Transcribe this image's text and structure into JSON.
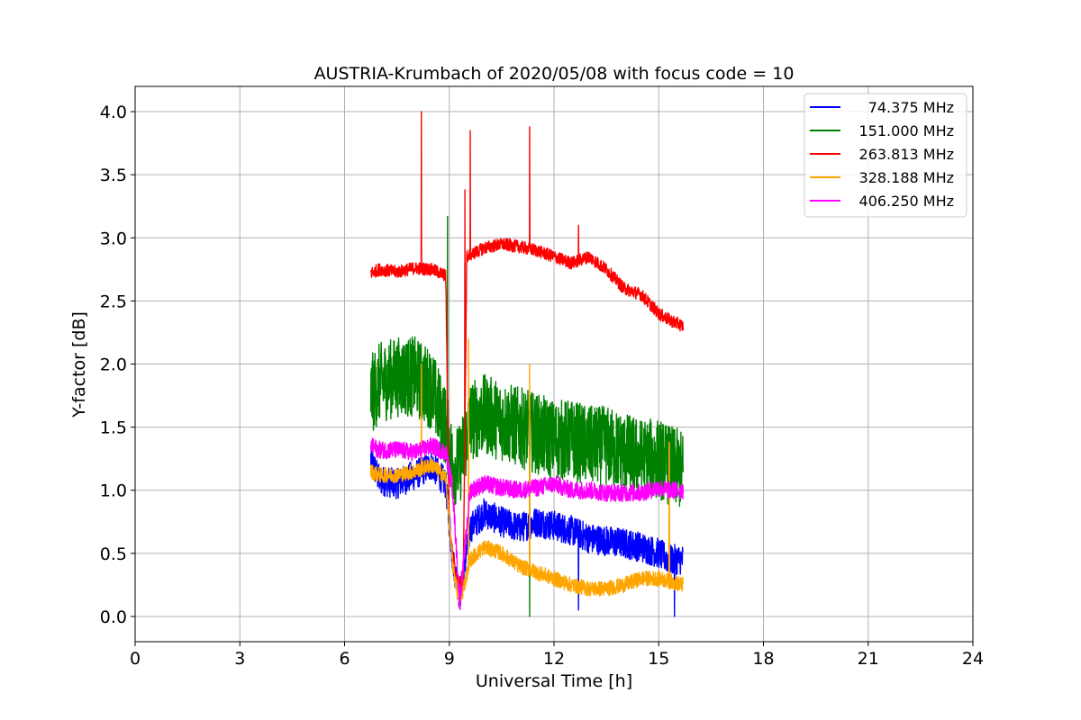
{
  "chart_data": {
    "type": "line",
    "title": "AUSTRIA-Krumbach of 2020/05/08 with focus code = 10",
    "xlabel": "Universal Time [h]",
    "ylabel": "Y-factor [dB]",
    "xlim": [
      0,
      24
    ],
    "ylim": [
      -0.2,
      4.2
    ],
    "xticks": [
      0,
      3,
      6,
      9,
      12,
      15,
      18,
      21,
      24
    ],
    "xtick_labels": [
      "0",
      "3",
      "6",
      "9",
      "12",
      "15",
      "18",
      "21",
      "24"
    ],
    "yticks": [
      0.0,
      0.5,
      1.0,
      1.5,
      2.0,
      2.5,
      3.0,
      3.5,
      4.0
    ],
    "ytick_labels": [
      "0.0",
      "0.5",
      "1.0",
      "1.5",
      "2.0",
      "2.5",
      "3.0",
      "3.5",
      "4.0"
    ],
    "grid": true,
    "legend_position": "top-right",
    "series": [
      {
        "name": "74.375 MHz",
        "color": "#0000ff",
        "noise": 0.12,
        "points": [
          [
            6.75,
            1.25
          ],
          [
            7.0,
            1.08
          ],
          [
            7.5,
            1.05
          ],
          [
            8.0,
            1.12
          ],
          [
            8.5,
            1.2
          ],
          [
            8.9,
            1.05
          ],
          [
            9.1,
            0.45
          ],
          [
            9.3,
            0.15
          ],
          [
            9.6,
            0.7
          ],
          [
            10.0,
            0.82
          ],
          [
            10.5,
            0.75
          ],
          [
            11.0,
            0.7
          ],
          [
            11.5,
            0.75
          ],
          [
            12.0,
            0.72
          ],
          [
            12.5,
            0.68
          ],
          [
            13.0,
            0.62
          ],
          [
            13.5,
            0.6
          ],
          [
            14.0,
            0.58
          ],
          [
            14.5,
            0.55
          ],
          [
            15.0,
            0.5
          ],
          [
            15.3,
            0.45
          ],
          [
            15.7,
            0.45
          ]
        ]
      },
      {
        "name": "151.000 MHz",
        "color": "#008000",
        "noise": 0.32,
        "points": [
          [
            6.75,
            1.75
          ],
          [
            7.0,
            1.85
          ],
          [
            7.5,
            1.9
          ],
          [
            8.0,
            1.9
          ],
          [
            8.5,
            1.8
          ],
          [
            8.9,
            1.5
          ],
          [
            9.1,
            1.2
          ],
          [
            9.3,
            1.2
          ],
          [
            9.6,
            1.55
          ],
          [
            10.0,
            1.6
          ],
          [
            10.5,
            1.55
          ],
          [
            11.0,
            1.5
          ],
          [
            11.5,
            1.45
          ],
          [
            12.0,
            1.4
          ],
          [
            12.5,
            1.4
          ],
          [
            13.0,
            1.35
          ],
          [
            13.5,
            1.35
          ],
          [
            14.0,
            1.3
          ],
          [
            14.5,
            1.25
          ],
          [
            15.0,
            1.25
          ],
          [
            15.3,
            1.2
          ],
          [
            15.7,
            1.15
          ]
        ]
      },
      {
        "name": "263.813 MHz",
        "color": "#ff0000",
        "noise": 0.05,
        "points": [
          [
            6.75,
            2.72
          ],
          [
            7.0,
            2.75
          ],
          [
            7.5,
            2.73
          ],
          [
            8.0,
            2.76
          ],
          [
            8.5,
            2.75
          ],
          [
            8.9,
            2.7
          ],
          [
            9.0,
            0.7
          ],
          [
            9.2,
            0.3
          ],
          [
            9.4,
            0.25
          ],
          [
            9.5,
            2.85
          ],
          [
            10.0,
            2.92
          ],
          [
            10.5,
            2.95
          ],
          [
            11.0,
            2.93
          ],
          [
            11.5,
            2.9
          ],
          [
            12.0,
            2.85
          ],
          [
            12.5,
            2.8
          ],
          [
            13.0,
            2.85
          ],
          [
            13.5,
            2.75
          ],
          [
            14.0,
            2.6
          ],
          [
            14.5,
            2.55
          ],
          [
            15.0,
            2.4
          ],
          [
            15.3,
            2.35
          ],
          [
            15.7,
            2.3
          ]
        ]
      },
      {
        "name": "328.188 MHz",
        "color": "#ffa500",
        "noise": 0.06,
        "points": [
          [
            6.75,
            1.15
          ],
          [
            7.0,
            1.12
          ],
          [
            7.5,
            1.12
          ],
          [
            8.0,
            1.15
          ],
          [
            8.5,
            1.2
          ],
          [
            8.9,
            1.1
          ],
          [
            9.1,
            0.4
          ],
          [
            9.3,
            0.1
          ],
          [
            9.6,
            0.45
          ],
          [
            10.0,
            0.55
          ],
          [
            10.5,
            0.5
          ],
          [
            11.0,
            0.4
          ],
          [
            11.5,
            0.35
          ],
          [
            12.0,
            0.3
          ],
          [
            12.5,
            0.25
          ],
          [
            13.0,
            0.22
          ],
          [
            13.5,
            0.22
          ],
          [
            14.0,
            0.25
          ],
          [
            14.5,
            0.3
          ],
          [
            15.0,
            0.3
          ],
          [
            15.3,
            0.28
          ],
          [
            15.7,
            0.25
          ]
        ]
      },
      {
        "name": "406.250 MHz",
        "color": "#ff00ff",
        "noise": 0.07,
        "points": [
          [
            6.75,
            1.35
          ],
          [
            7.0,
            1.32
          ],
          [
            7.5,
            1.32
          ],
          [
            8.0,
            1.3
          ],
          [
            8.5,
            1.35
          ],
          [
            8.9,
            1.3
          ],
          [
            9.1,
            1.0
          ],
          [
            9.3,
            0.1
          ],
          [
            9.6,
            1.0
          ],
          [
            10.0,
            1.05
          ],
          [
            10.5,
            1.02
          ],
          [
            11.0,
            1.0
          ],
          [
            11.5,
            1.02
          ],
          [
            12.0,
            1.05
          ],
          [
            12.5,
            1.0
          ],
          [
            13.0,
            1.0
          ],
          [
            13.5,
            0.98
          ],
          [
            14.0,
            0.98
          ],
          [
            14.5,
            0.98
          ],
          [
            15.0,
            1.02
          ],
          [
            15.3,
            1.0
          ],
          [
            15.7,
            1.0
          ]
        ]
      }
    ],
    "spikes": [
      {
        "series": 2,
        "x": 8.2,
        "y": 4.0
      },
      {
        "series": 2,
        "x": 9.45,
        "y": 3.38
      },
      {
        "series": 2,
        "x": 9.6,
        "y": 3.85
      },
      {
        "series": 2,
        "x": 11.3,
        "y": 3.88
      },
      {
        "series": 1,
        "x": 8.95,
        "y": 3.17
      },
      {
        "series": 1,
        "x": 9.45,
        "y": 2.8
      },
      {
        "series": 3,
        "x": 8.2,
        "y": 2.0
      },
      {
        "series": 3,
        "x": 9.55,
        "y": 2.2
      },
      {
        "series": 3,
        "x": 11.3,
        "y": 2.0
      },
      {
        "series": 3,
        "x": 15.3,
        "y": 1.38
      },
      {
        "series": 1,
        "x": 11.3,
        "y": 0.0
      },
      {
        "series": 0,
        "x": 15.45,
        "y": 0.0
      },
      {
        "series": 0,
        "x": 12.7,
        "y": 0.05
      },
      {
        "series": 2,
        "x": 12.7,
        "y": 3.1
      }
    ]
  }
}
